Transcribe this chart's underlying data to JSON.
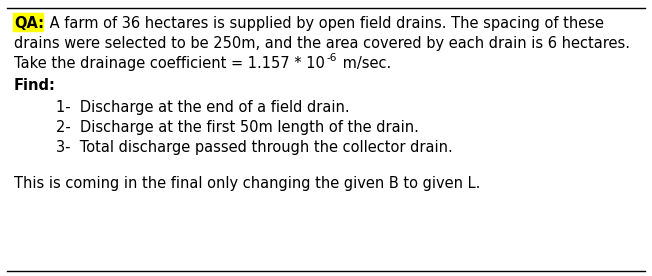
{
  "background_color": "#ffffff",
  "top_line_color": "#000000",
  "bottom_line_color": "#000000",
  "qa_highlight_color": "#ffff00",
  "qa_label": "QA:",
  "line1_after_qa": " A farm of 36 hectares is supplied by open field drains. The spacing of these",
  "line2": "drains were selected to be 250m, and the area covered by each drain is 6 hectares.",
  "line3_main": "Take the drainage coefficient = 1.157 * 10",
  "line3_super": "-6",
  "line3_end": " m/sec.",
  "find_label": "Find:",
  "item1": "1-  Discharge at the end of a field drain.",
  "item2": "2-  Discharge at the first 50m length of the drain.",
  "item3": "3-  Total discharge passed through the collector drain.",
  "footer": "This is coming in the final only changing the given B to given L.",
  "font_size": 10.5,
  "font_family": "DejaVu Sans"
}
